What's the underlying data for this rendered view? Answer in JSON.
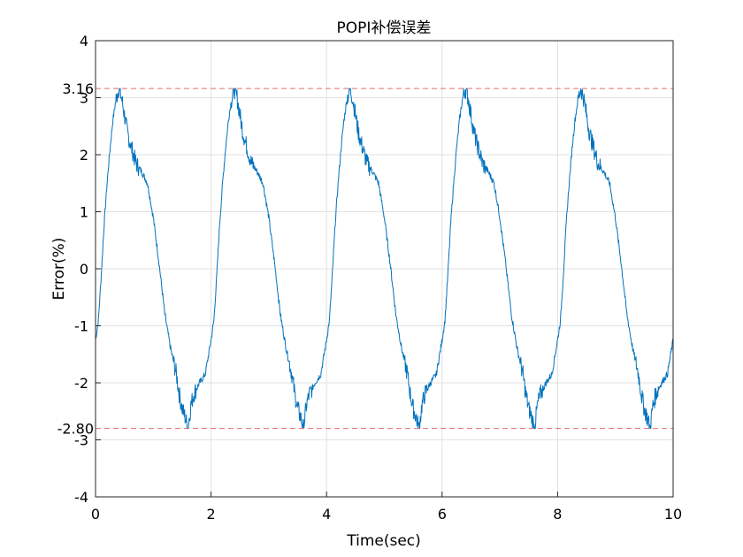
{
  "chart_data": {
    "type": "line",
    "title": "POPI补偿误差",
    "xlabel": "Time(sec)",
    "ylabel": "Error(%)",
    "xlim": [
      0,
      10
    ],
    "ylim": [
      -4,
      4
    ],
    "xticks": [
      "0",
      "2",
      "4",
      "6",
      "8",
      "10"
    ],
    "yticks": [
      "4",
      "3",
      "2",
      "1",
      "0",
      "-1",
      "-2",
      "-3",
      "-4"
    ],
    "grid": true,
    "line_color": "#0072BD",
    "reference_color": "#E36C6C",
    "reference_lines": [
      {
        "label": "3.16",
        "value": 3.16
      },
      {
        "label": "-2.80",
        "value": -2.8
      }
    ],
    "series": [
      {
        "period": 2.0,
        "x": [
          0,
          0.05,
          0.1,
          0.15,
          0.2,
          0.25,
          0.3,
          0.35,
          0.4,
          0.45,
          0.5,
          0.55,
          0.6,
          0.7,
          0.8,
          0.9,
          1.0,
          1.1,
          1.2,
          1.3,
          1.4,
          1.45,
          1.5,
          1.55,
          1.6,
          1.65,
          1.7,
          1.75,
          1.8,
          1.9,
          2.0
        ],
        "y": [
          -1.25,
          -0.9,
          -0.1,
          0.8,
          1.5,
          2.1,
          2.6,
          2.95,
          3.16,
          3.0,
          2.7,
          2.4,
          2.2,
          1.85,
          1.7,
          1.5,
          0.9,
          0.1,
          -0.8,
          -1.4,
          -1.85,
          -2.2,
          -2.45,
          -2.6,
          -2.8,
          -2.4,
          -2.2,
          -2.1,
          -2.0,
          -1.85,
          -1.25
        ]
      }
    ]
  }
}
